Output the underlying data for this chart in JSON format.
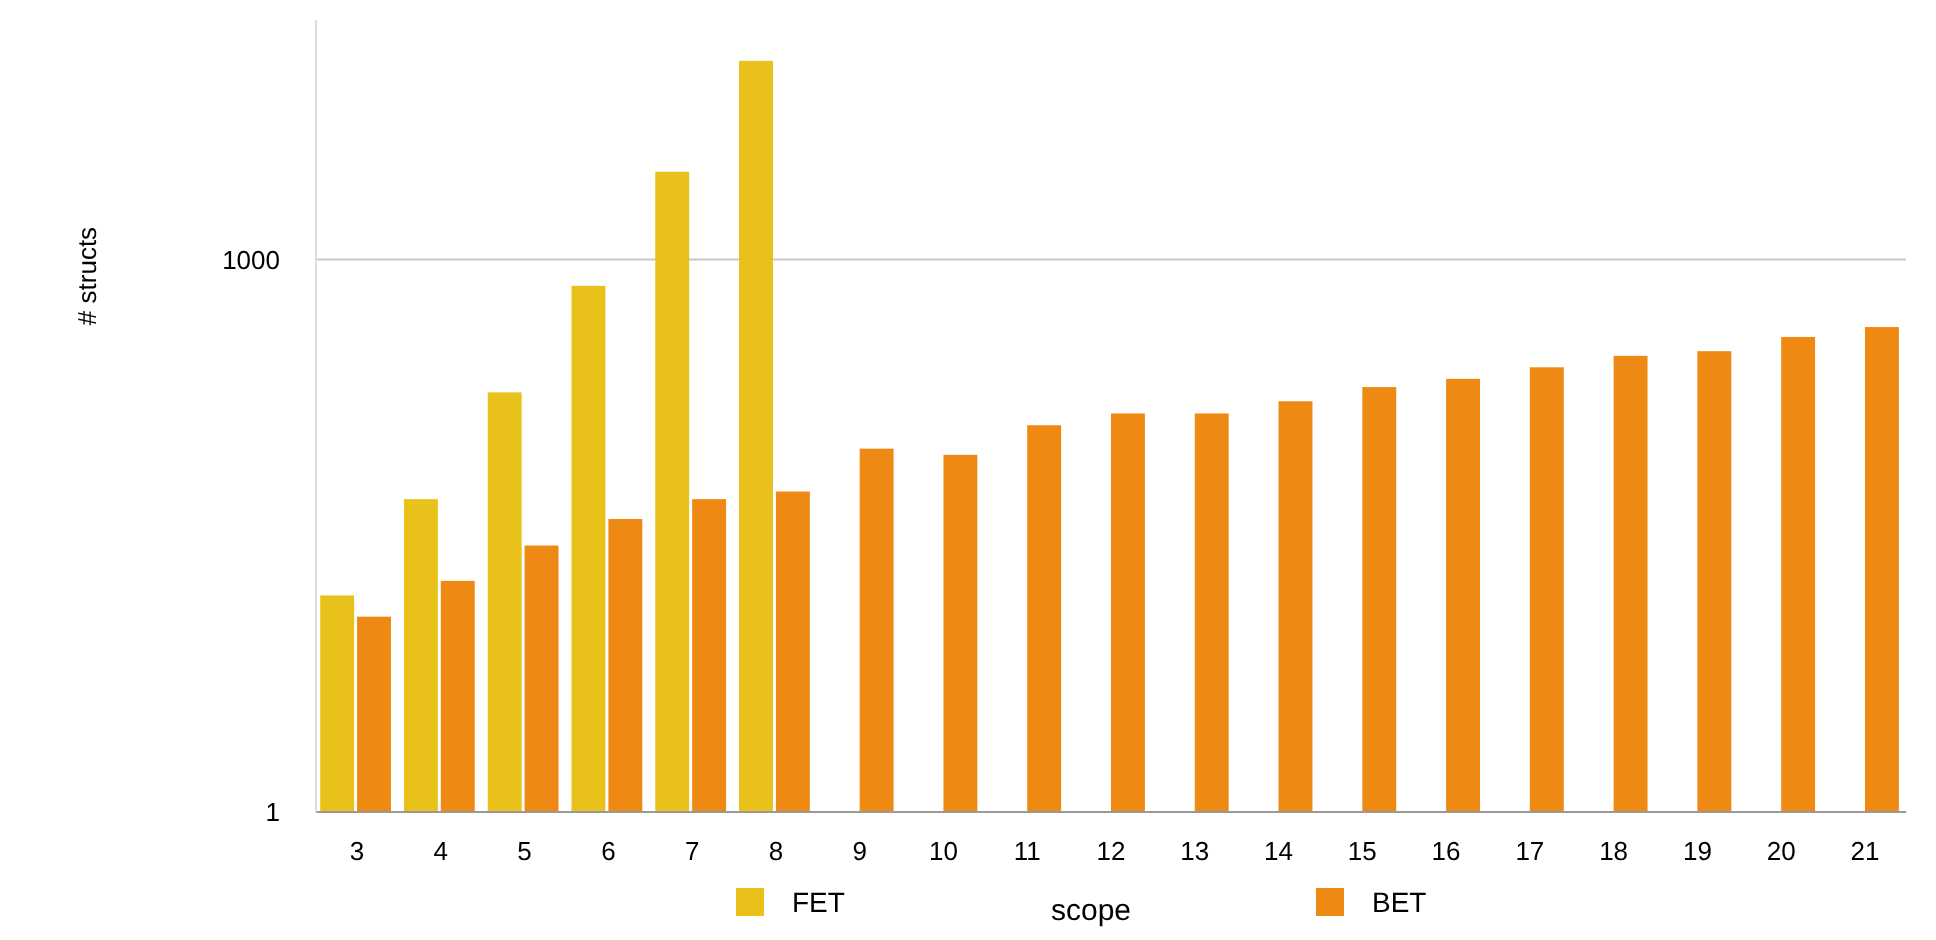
{
  "chart_data": {
    "type": "bar",
    "xlabel": "scope",
    "ylabel": "# structs",
    "log": true,
    "grid": "y",
    "legend": "bottom",
    "categories": [
      "3",
      "4",
      "5",
      "6",
      "7",
      "8",
      "9",
      "10",
      "11",
      "12",
      "13",
      "14",
      "15",
      "16",
      "17",
      "18",
      "19",
      "20",
      "21"
    ],
    "ylim": [
      1,
      20000
    ],
    "yticks": [
      1,
      1000
    ],
    "series": [
      {
        "name": "FET",
        "color": "#e8c21a",
        "values": [
          15,
          50,
          190,
          720,
          3000,
          12000,
          null,
          null,
          null,
          null,
          null,
          null,
          null,
          null,
          null,
          null,
          null,
          null,
          null
        ]
      },
      {
        "name": "BET",
        "color": "#ee8a14",
        "values": [
          11.5,
          18,
          28,
          39,
          50,
          55,
          94,
          87,
          126,
          146,
          146,
          170,
          203,
          225,
          260,
          300,
          318,
          380,
          430
        ]
      }
    ]
  }
}
